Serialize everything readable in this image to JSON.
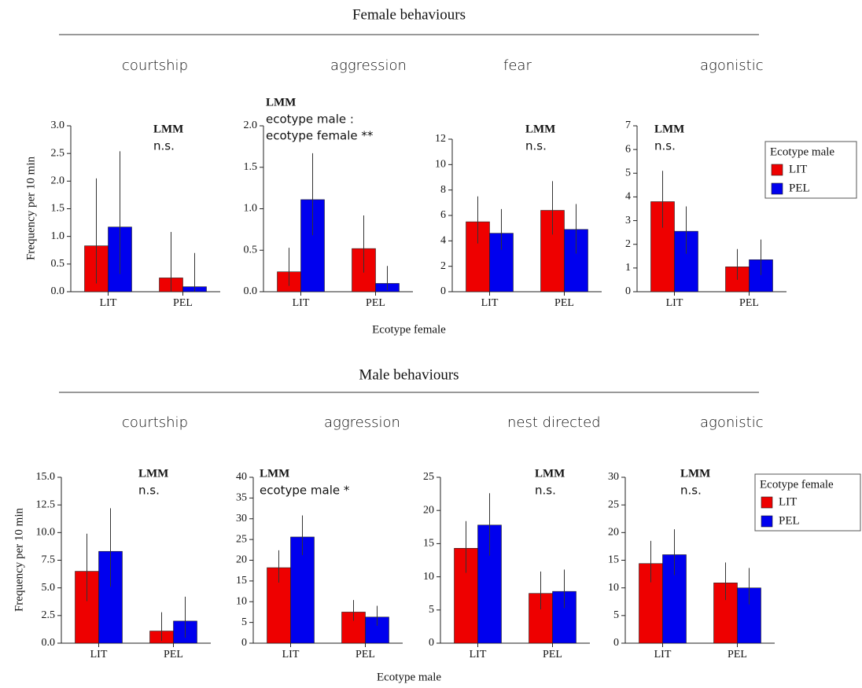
{
  "sections": [
    {
      "title": "Female behaviours",
      "xlabel": "Ecotype female",
      "ylabel": "Frequency per 10 min"
    },
    {
      "title": "Male behaviours",
      "xlabel": "Ecotype male",
      "ylabel": "Frequency per 10 min"
    }
  ],
  "chart_data": [
    {
      "type": "bar",
      "title": "courtship",
      "annotations": [
        "LMM",
        "n.s."
      ],
      "categories": [
        "LIT",
        "PEL"
      ],
      "series": [
        {
          "name": "LIT",
          "color": "#ee0000",
          "values": [
            0.83,
            0.25
          ],
          "ci": [
            [
              0.15,
              2.05
            ],
            [
              0,
              1.08
            ]
          ]
        },
        {
          "name": "PEL",
          "color": "#0000ee",
          "values": [
            1.17,
            0.09
          ],
          "ci": [
            [
              0.32,
              2.54
            ],
            [
              0,
              0.7
            ]
          ]
        }
      ],
      "ylim": [
        0,
        3
      ],
      "yticks": [
        {
          "value": 0,
          "label": "0.0"
        },
        0.5,
        {
          "value": 1,
          "label": "1.0"
        },
        1.5,
        {
          "value": 2,
          "label": "2.0"
        },
        2.5,
        {
          "value": 3,
          "label": "3.0"
        }
      ]
    },
    {
      "type": "bar",
      "title": "aggression",
      "annotations": [
        "LMM",
        "ecotype male :",
        "ecotype female **"
      ],
      "categories": [
        "LIT",
        "PEL"
      ],
      "series": [
        {
          "name": "LIT",
          "color": "#ee0000",
          "values": [
            0.24,
            0.52
          ],
          "ci": [
            [
              0.07,
              0.53
            ],
            [
              0.23,
              0.92
            ]
          ]
        },
        {
          "name": "PEL",
          "color": "#0000ee",
          "values": [
            1.11,
            0.1
          ],
          "ci": [
            [
              0.68,
              1.67
            ],
            [
              0.02,
              0.31
            ]
          ]
        }
      ],
      "ylim": [
        0,
        2
      ],
      "yticks": [
        {
          "value": 0,
          "label": "0.0"
        },
        0.5,
        {
          "value": 1,
          "label": "1.0"
        },
        1.5,
        {
          "value": 2,
          "label": "2.0"
        }
      ]
    },
    {
      "type": "bar",
      "title": "fear",
      "annotations": [
        "LMM",
        "n.s."
      ],
      "categories": [
        "LIT",
        "PEL"
      ],
      "series": [
        {
          "name": "LIT",
          "color": "#ee0000",
          "values": [
            5.5,
            6.4
          ],
          "ci": [
            [
              3.8,
              7.5
            ],
            [
              4.5,
              8.7
            ]
          ]
        },
        {
          "name": "PEL",
          "color": "#0000ee",
          "values": [
            4.6,
            4.9
          ],
          "ci": [
            [
              3.3,
              6.5
            ],
            [
              3.0,
              6.9
            ]
          ]
        }
      ],
      "ylim": [
        0,
        12
      ],
      "yticks": [
        0,
        2,
        4,
        6,
        8,
        10,
        12
      ]
    },
    {
      "type": "bar",
      "title": "agonistic",
      "annotations": [
        "LMM",
        "n.s."
      ],
      "categories": [
        "LIT",
        "PEL"
      ],
      "series": [
        {
          "name": "LIT",
          "color": "#ee0000",
          "values": [
            3.8,
            1.05
          ],
          "ci": [
            [
              2.7,
              5.1
            ],
            [
              0.5,
              1.8
            ]
          ]
        },
        {
          "name": "PEL",
          "color": "#0000ee",
          "values": [
            2.55,
            1.35
          ],
          "ci": [
            [
              1.6,
              3.6
            ],
            [
              0.7,
              2.2
            ]
          ]
        }
      ],
      "ylim": [
        0,
        7
      ],
      "yticks": [
        0,
        1,
        2,
        3,
        4,
        5,
        6,
        7
      ],
      "legend": "right",
      "legend_title": "Ecotype male"
    },
    {
      "type": "bar",
      "title": "courtship",
      "annotations": [
        "LMM",
        "n.s."
      ],
      "categories": [
        "LIT",
        "PEL"
      ],
      "series": [
        {
          "name": "LIT",
          "color": "#ee0000",
          "values": [
            6.5,
            1.1
          ],
          "ci": [
            [
              3.8,
              9.9
            ],
            [
              0.2,
              2.8
            ]
          ]
        },
        {
          "name": "PEL",
          "color": "#0000ee",
          "values": [
            8.3,
            2.0
          ],
          "ci": [
            [
              5.1,
              12.2
            ],
            [
              0.5,
              4.2
            ]
          ]
        }
      ],
      "ylim": [
        0,
        15
      ],
      "yticks": [
        {
          "value": 0,
          "label": "0.0"
        },
        2.5,
        {
          "value": 5,
          "label": "5.0"
        },
        7.5,
        {
          "value": 10,
          "label": "10.0"
        },
        12.5,
        {
          "value": 15,
          "label": "15.0"
        }
      ]
    },
    {
      "type": "bar",
      "title": "aggression",
      "annotations": [
        "LMM",
        "ecotype male *"
      ],
      "categories": [
        "LIT",
        "PEL"
      ],
      "series": [
        {
          "name": "LIT",
          "color": "#ee0000",
          "values": [
            18.2,
            7.5
          ],
          "ci": [
            [
              14.6,
              22.4
            ],
            [
              5.4,
              10.4
            ]
          ]
        },
        {
          "name": "PEL",
          "color": "#0000ee",
          "values": [
            25.6,
            6.3
          ],
          "ci": [
            [
              21.2,
              30.8
            ],
            [
              4.2,
              9.0
            ]
          ]
        }
      ],
      "ylim": [
        0,
        40
      ],
      "yticks": [
        0,
        5,
        10,
        15,
        20,
        25,
        30,
        35,
        40
      ]
    },
    {
      "type": "bar",
      "title": "nest directed",
      "annotations": [
        "LMM",
        "n.s."
      ],
      "categories": [
        "LIT",
        "PEL"
      ],
      "series": [
        {
          "name": "LIT",
          "color": "#ee0000",
          "values": [
            14.3,
            7.5
          ],
          "ci": [
            [
              10.6,
              18.4
            ],
            [
              5.1,
              10.8
            ]
          ]
        },
        {
          "name": "PEL",
          "color": "#0000ee",
          "values": [
            17.8,
            7.8
          ],
          "ci": [
            [
              13.2,
              22.6
            ],
            [
              5.3,
              11.1
            ]
          ]
        }
      ],
      "ylim": [
        0,
        25
      ],
      "yticks": [
        0,
        5,
        10,
        15,
        20,
        25
      ]
    },
    {
      "type": "bar",
      "title": "agonistic",
      "annotations": [
        "LMM",
        "n.s."
      ],
      "categories": [
        "LIT",
        "PEL"
      ],
      "series": [
        {
          "name": "LIT",
          "color": "#ee0000",
          "values": [
            14.4,
            10.9
          ],
          "ci": [
            [
              11.0,
              18.5
            ],
            [
              7.8,
              14.6
            ]
          ]
        },
        {
          "name": "PEL",
          "color": "#0000ee",
          "values": [
            16.0,
            10.0
          ],
          "ci": [
            [
              12.3,
              20.6
            ],
            [
              7.0,
              13.6
            ]
          ]
        }
      ],
      "ylim": [
        0,
        30
      ],
      "yticks": [
        0,
        5,
        10,
        15,
        20,
        25,
        30
      ],
      "legend": "right",
      "legend_title": "Ecotype female"
    }
  ]
}
